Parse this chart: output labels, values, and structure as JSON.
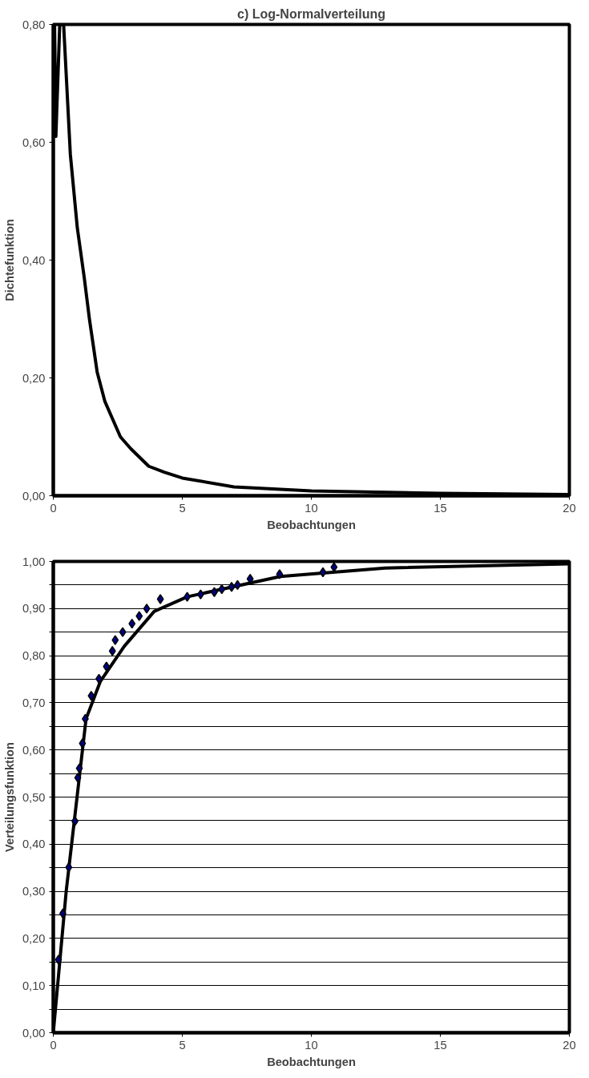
{
  "chart_data": [
    {
      "type": "line",
      "title": "c) Log-Normalverteilung",
      "xlabel": "Beobachtungen",
      "ylabel": "Dichtefunktion",
      "xlim": [
        0,
        20
      ],
      "ylim": [
        0,
        0.8
      ],
      "xticks": [
        0,
        5,
        10,
        15,
        20
      ],
      "yticks": [
        {
          "value": 0,
          "label": "0,00"
        },
        {
          "value": 0.2,
          "label": "0,20"
        },
        {
          "value": 0.4,
          "label": "0,40"
        },
        {
          "value": 0.6,
          "label": "0,60"
        },
        {
          "value": 0.8,
          "label": "0,80"
        }
      ],
      "grid": false,
      "series": [
        {
          "color": "#000000",
          "line_style": "solid",
          "marker": "none",
          "x": [
            0.05,
            0.1,
            0.25,
            0.4,
            0.66,
            0.93,
            1.2,
            1.4,
            1.7,
            2.0,
            2.6,
            3.0,
            3.7,
            4.3,
            5,
            7,
            10,
            15,
            20
          ],
          "values": [
            0.8,
            0.61,
            0.8,
            0.8,
            0.58,
            0.455,
            0.37,
            0.3,
            0.21,
            0.16,
            0.1,
            0.08,
            0.05,
            0.04,
            0.03,
            0.015,
            0.008,
            0.004,
            0.002
          ]
        }
      ]
    },
    {
      "type": "line",
      "xlabel": "Beobachtungen",
      "ylabel": "Verteilungsfunktion",
      "xlim": [
        0,
        20
      ],
      "ylim": [
        0,
        1
      ],
      "xticks": [
        0,
        5,
        10,
        15,
        20
      ],
      "yticks": [
        {
          "value": 0,
          "label": "0,00"
        },
        {
          "value": 0.05,
          "label": null
        },
        {
          "value": 0.1,
          "label": "0,10"
        },
        {
          "value": 0.15,
          "label": null
        },
        {
          "value": 0.2,
          "label": "0,20"
        },
        {
          "value": 0.25,
          "label": null
        },
        {
          "value": 0.3,
          "label": "0,30"
        },
        {
          "value": 0.35,
          "label": null
        },
        {
          "value": 0.4,
          "label": "0,40"
        },
        {
          "value": 0.45,
          "label": null
        },
        {
          "value": 0.5,
          "label": "0,50"
        },
        {
          "value": 0.55,
          "label": null
        },
        {
          "value": 0.6,
          "label": "0,60"
        },
        {
          "value": 0.65,
          "label": null
        },
        {
          "value": 0.7,
          "label": "0,70"
        },
        {
          "value": 0.75,
          "label": null
        },
        {
          "value": 0.8,
          "label": "0,80"
        },
        {
          "value": 0.85,
          "label": null
        },
        {
          "value": 0.9,
          "label": "0,90"
        },
        {
          "value": 0.95,
          "label": null
        },
        {
          "value": 1,
          "label": "1,00"
        }
      ],
      "grid": "y",
      "series": [
        {
          "type": "line",
          "color": "#000000",
          "line_style": "solid",
          "marker": "none",
          "x": [
            0,
            0.5,
            1.27,
            1.82,
            2.75,
            3.91,
            5.19,
            8.8,
            12.86,
            20
          ],
          "values": [
            0,
            0.3,
            0.666,
            0.745,
            0.82,
            0.894,
            0.925,
            0.968,
            0.986,
            0.995
          ]
        },
        {
          "type": "scatter",
          "color": "#000080",
          "marker": "diamond",
          "x": [
            0.2,
            0.37,
            0.6,
            0.84,
            0.95,
            1.01,
            1.13,
            1.24,
            1.47,
            1.77,
            2.06,
            2.29,
            2.4,
            2.69,
            3.05,
            3.33,
            3.62,
            4.15,
            5.19,
            5.71,
            6.24,
            6.53,
            6.91,
            7.14,
            7.63,
            8.77,
            10.45,
            10.88
          ],
          "values": [
            0.155,
            0.253,
            0.351,
            0.449,
            0.541,
            0.561,
            0.614,
            0.666,
            0.715,
            0.751,
            0.777,
            0.81,
            0.833,
            0.85,
            0.868,
            0.884,
            0.9,
            0.92,
            0.925,
            0.93,
            0.935,
            0.941,
            0.946,
            0.95,
            0.963,
            0.973,
            0.977,
            0.988
          ]
        }
      ]
    }
  ]
}
